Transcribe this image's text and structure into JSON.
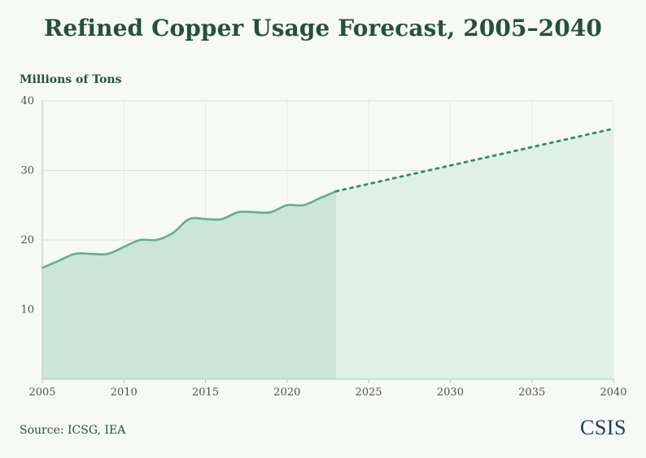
{
  "chart_data": {
    "type": "area",
    "title": "Refined Copper Usage Forecast, 2005–2040",
    "ylabel": "Millions of Tons",
    "xlabel": "",
    "source": "Source: ICSG, IEA",
    "logo": "CSIS",
    "xlim": [
      2005,
      2040
    ],
    "ylim": [
      0,
      40
    ],
    "x_ticks": [
      2005,
      2010,
      2015,
      2020,
      2025,
      2030,
      2035,
      2040
    ],
    "y_ticks": [
      10,
      20,
      30,
      40
    ],
    "grid": true,
    "series": [
      {
        "style": "solid",
        "x": [
          2005,
          2006,
          2007,
          2008,
          2009,
          2010,
          2011,
          2012,
          2013,
          2014,
          2015,
          2016,
          2017,
          2018,
          2019,
          2020,
          2021,
          2022,
          2023
        ],
        "y": [
          16,
          17,
          18,
          18,
          18,
          19,
          20,
          20,
          21,
          23,
          23,
          23,
          24,
          24,
          24,
          25,
          25,
          26,
          27
        ]
      },
      {
        "style": "dotted",
        "x": [
          2023,
          2040
        ],
        "y": [
          27,
          36
        ]
      }
    ],
    "colors": {
      "line": "#5fae97",
      "forecast_line": "#2f8a72",
      "area_actual": "#cbe6d8",
      "area_forecast": "#dff1e6",
      "grid": "#d8dfda",
      "axis": "#b8c2bd"
    }
  }
}
